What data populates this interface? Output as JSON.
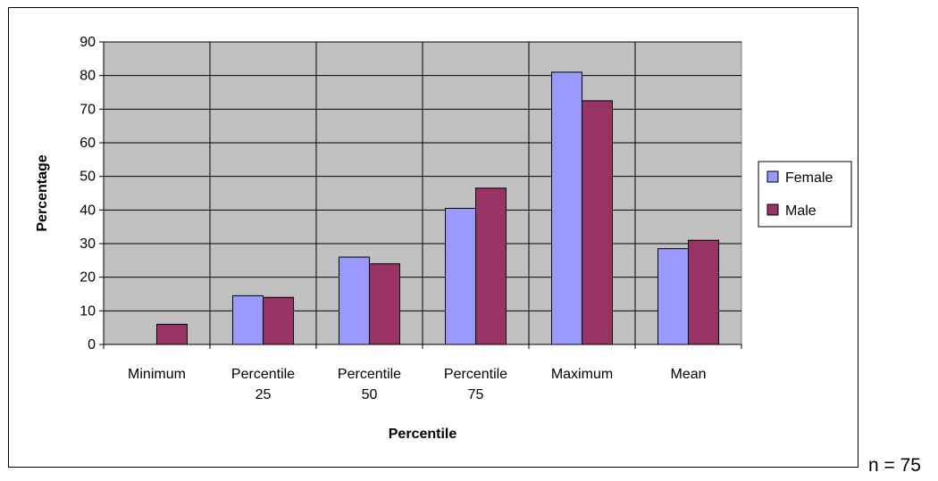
{
  "chart_data": {
    "type": "bar",
    "title": "",
    "xlabel": "Percentile",
    "ylabel": "Percentage",
    "categories": [
      [
        "Minimum"
      ],
      [
        "Percentile",
        "25"
      ],
      [
        "Percentile",
        "50"
      ],
      [
        "Percentile",
        "75"
      ],
      [
        "Maximum"
      ],
      [
        "Mean"
      ]
    ],
    "series": [
      {
        "name": "Female",
        "color": "#9999ff",
        "values": [
          0,
          14.5,
          26,
          40.5,
          81,
          28.5
        ]
      },
      {
        "name": "Male",
        "color": "#993366",
        "values": [
          6,
          14,
          24,
          46.5,
          72.5,
          31
        ]
      }
    ],
    "ylim": [
      0,
      90
    ],
    "ytick_step": 10,
    "grid": true,
    "plot_background": "#c0c0c0",
    "legend_position": "right"
  },
  "note": "n = 75"
}
